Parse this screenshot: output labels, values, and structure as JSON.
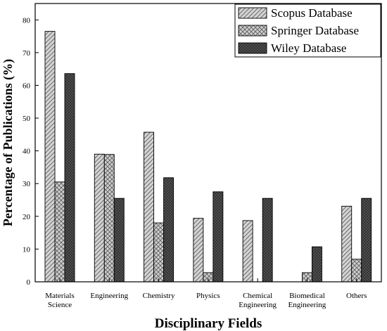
{
  "chart_data": {
    "type": "bar",
    "title": "",
    "xlabel": "Disciplinary Fields",
    "ylabel": "Percentage of Publications (%)",
    "ylim": [
      0,
      85
    ],
    "yticks": [
      0,
      10,
      20,
      30,
      40,
      50,
      60,
      70,
      80
    ],
    "grid": false,
    "legend_position": "top-right",
    "categories": [
      [
        "Materials",
        "Science"
      ],
      [
        "Engineering"
      ],
      [
        "Chemistry"
      ],
      [
        "Physics"
      ],
      [
        "Chemical",
        "Engineering"
      ],
      [
        "Biomedical",
        "Engineering"
      ],
      [
        "Others"
      ]
    ],
    "series": [
      {
        "name": "Scopus Database",
        "pattern": "diagonal",
        "values": [
          76.5,
          39.0,
          45.7,
          19.4,
          18.7,
          0,
          23.1
        ]
      },
      {
        "name": "Springer Database",
        "pattern": "crosshatch",
        "values": [
          30.5,
          38.9,
          18.0,
          2.8,
          0,
          2.8,
          6.9
        ]
      },
      {
        "name": "Wiley Database",
        "pattern": "dense",
        "values": [
          63.6,
          25.5,
          31.8,
          27.5,
          25.5,
          10.7,
          25.5
        ]
      }
    ]
  }
}
